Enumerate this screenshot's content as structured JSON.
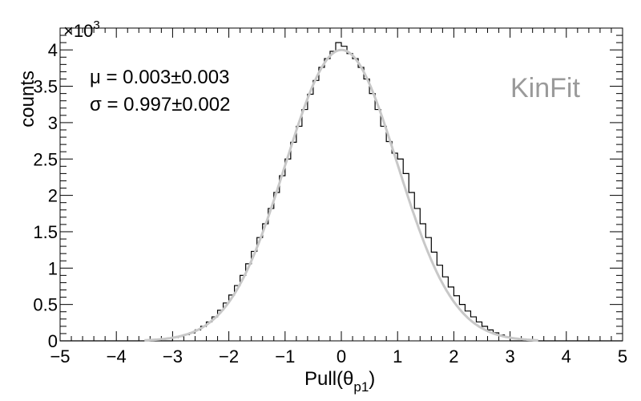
{
  "chart_data": {
    "type": "histogram",
    "xlabel": "Pull(θ",
    "xlabel_sub": "p1",
    "xlabel_close": ")",
    "ylabel": "counts",
    "y_multiplier_base": "×10",
    "y_multiplier_exp": "3",
    "xlim": [
      -5,
      5
    ],
    "ylim": [
      0,
      4300
    ],
    "x_ticks": [
      -5,
      -4,
      -3,
      -2,
      -1,
      0,
      1,
      2,
      3,
      4,
      5
    ],
    "x_tick_labels": [
      "−5",
      "−4",
      "−3",
      "−2",
      "−1",
      "0",
      "1",
      "2",
      "3",
      "4",
      "5"
    ],
    "y_ticks": [
      0,
      500,
      1000,
      1500,
      2000,
      2500,
      3000,
      3500,
      4000
    ],
    "y_tick_labels": [
      "0",
      "0.5",
      "1",
      "1.5",
      "2",
      "2.5",
      "3",
      "3.5",
      "4"
    ],
    "stats": {
      "mu_symbol": "μ",
      "mu_text": " = 0.003±0.003",
      "sigma_symbol": "σ",
      "sigma_text": " = 0.997±0.002"
    },
    "watermark": "KinFit",
    "histogram": {
      "bin_edges": [
        -3.0,
        -2.9,
        -2.8,
        -2.7,
        -2.6,
        -2.5,
        -2.4,
        -2.3,
        -2.2,
        -2.1,
        -2.0,
        -1.9,
        -1.8,
        -1.7,
        -1.6,
        -1.5,
        -1.4,
        -1.3,
        -1.2,
        -1.1,
        -1.0,
        -0.9,
        -0.8,
        -0.7,
        -0.6,
        -0.5,
        -0.4,
        -0.3,
        -0.2,
        -0.1,
        0.0,
        0.1,
        0.2,
        0.3,
        0.4,
        0.5,
        0.6,
        0.7,
        0.8,
        0.9,
        1.0,
        1.1,
        1.2,
        1.3,
        1.4,
        1.5,
        1.6,
        1.7,
        1.8,
        1.9,
        2.0,
        2.1,
        2.2,
        2.3,
        2.4,
        2.5,
        2.6,
        2.7,
        2.8,
        2.9,
        3.0
      ],
      "counts": [
        45,
        60,
        85,
        110,
        150,
        200,
        260,
        330,
        420,
        520,
        630,
        760,
        900,
        1060,
        1230,
        1420,
        1610,
        1820,
        2040,
        2270,
        2500,
        2730,
        2950,
        3180,
        3390,
        3580,
        3760,
        3880,
        3980,
        4100,
        4050,
        3950,
        3880,
        3760,
        3600,
        3400,
        3180,
        2950,
        2740,
        2580,
        2500,
        2300,
        2040,
        1820,
        1610,
        1420,
        1220,
        1040,
        880,
        740,
        620,
        500,
        410,
        330,
        260,
        200,
        150,
        110,
        80,
        55
      ]
    },
    "fit": {
      "function": "gaussian",
      "amplitude": 4000,
      "mean": 0.003,
      "sigma": 0.997,
      "color": "#c8c8c8"
    },
    "histogram_color": "#000000",
    "watermark_color": "#9a9a9a",
    "grid": false
  }
}
